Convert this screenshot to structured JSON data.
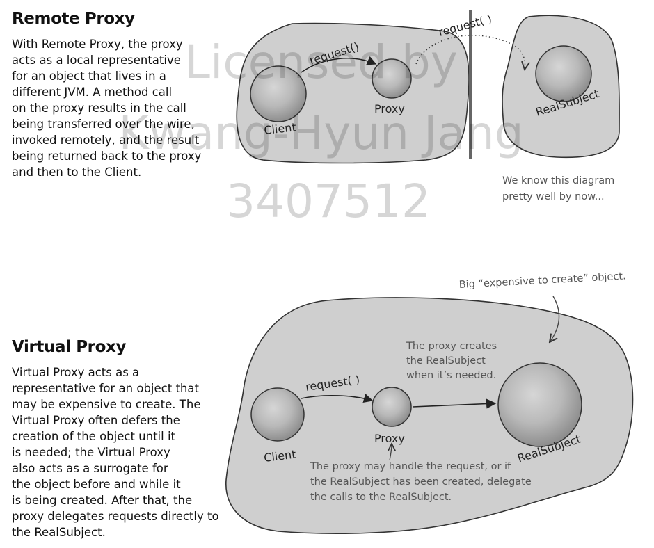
{
  "remote": {
    "title": "Remote Proxy",
    "lines": [
      "With Remote Proxy, the proxy",
      "acts as a local representative",
      "for an object that lives in a",
      "different JVM. A method call",
      "on the proxy results in the call",
      "being transferred over the wire,",
      "invoked remotely, and the result",
      "being returned back to the proxy",
      "and then to the Client."
    ],
    "diagram": {
      "client_label": "Client",
      "proxy_label": "Proxy",
      "subject_label": "RealSubject",
      "request_label_local": "request()",
      "request_label_remote": "request( )",
      "note_lines": [
        "We know this diagram",
        "pretty well by now..."
      ]
    }
  },
  "virtual": {
    "title": "Virtual Proxy",
    "lines": [
      "Virtual Proxy acts as a",
      "representative for an object that",
      "may be expensive to create. The",
      "Virtual Proxy often defers the",
      "creation of the object until it",
      "is needed; the Virtual Proxy",
      "also acts as a surrogate for",
      "the object before and while it",
      "is being created.  After that, the",
      "proxy delegates requests directly to",
      "the RealSubject."
    ],
    "diagram": {
      "client_label": "Client",
      "proxy_label": "Proxy",
      "subject_label": "RealSubject",
      "request_label": "request( )",
      "note_expensive": "Big “expensive to create” object.",
      "note_creates_lines": [
        "The proxy creates",
        "the RealSubject",
        "when it’s needed."
      ],
      "note_handle_lines": [
        "The proxy may handle the request, or if",
        "the RealSubject has been created, delegate",
        "the calls to the  RealSubject."
      ]
    }
  },
  "watermark": {
    "lines": [
      "Licensed by",
      "Kwang-Hyun Jang",
      "3407512"
    ]
  }
}
